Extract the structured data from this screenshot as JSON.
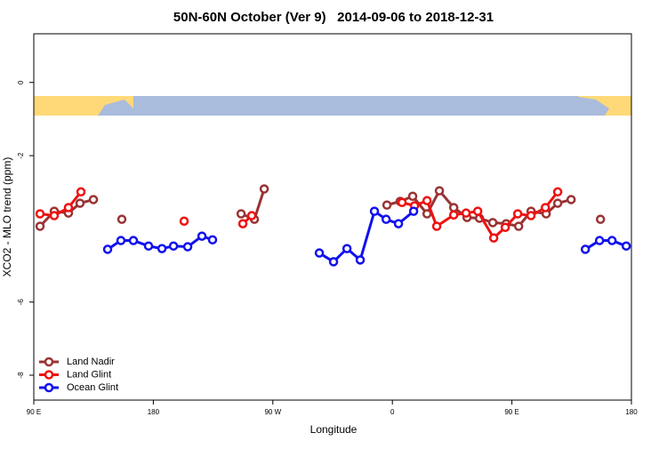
{
  "chart_data": {
    "type": "line",
    "title": "50N-60N October (Ver 9)   2014-09-06 to 2018-12-31",
    "x_label": "Longitude",
    "y_label": "XCO2 - MLO trend (ppm)",
    "xlim": [
      90,
      540
    ],
    "ylim": [
      -8.68,
      1.33
    ],
    "xticks": [
      {
        "value": 90,
        "label": "90 E"
      },
      {
        "value": 180,
        "label": "180"
      },
      {
        "value": 270,
        "label": "90 W"
      },
      {
        "value": 360,
        "label": "0"
      },
      {
        "value": 450,
        "label": "90 E"
      },
      {
        "value": 540,
        "label": "180"
      }
    ],
    "yticks": [
      0,
      -2,
      -6,
      -8
    ],
    "legend": "bottom-left",
    "series": [
      {
        "name": "Land Nadir",
        "color": "#993333",
        "x": [
          94.7,
          105.4,
          116.1,
          124.8,
          134.9,
          null,
          156.3,
          null,
          246.1,
          256.1,
          263.5,
          null,
          355.9,
          365.9,
          375.3,
          386.1,
          395.4,
          406.2,
          416.2,
          425.6,
          435.6,
          445.7,
          455.1,
          464.4,
          475.8,
          484.5,
          494.6,
          null,
          516.7
        ],
        "values": [
          -3.93,
          -3.52,
          -3.57,
          -3.3,
          -3.2,
          null,
          -3.74,
          null,
          -3.59,
          -3.74,
          -2.91,
          null,
          -3.35,
          -3.25,
          -3.11,
          -3.59,
          -2.96,
          -3.42,
          -3.69,
          -3.71,
          -3.83,
          -3.86,
          -3.93,
          -3.52,
          -3.59,
          -3.3,
          -3.2,
          null,
          -3.74
        ]
      },
      {
        "name": "Land Glint",
        "color": "#ee1111",
        "x": [
          94.7,
          105.4,
          116.1,
          125.5,
          null,
          203.2,
          null,
          247.4,
          254.1,
          null,
          367.3,
          376.7,
          386.1,
          393.4,
          406.2,
          415.5,
          424.3,
          436.3,
          445.0,
          454.4,
          464.4,
          475.2,
          484.5
        ],
        "values": [
          -3.59,
          -3.64,
          -3.42,
          -2.99,
          null,
          -3.79,
          null,
          -3.86,
          -3.64,
          null,
          -3.28,
          -3.37,
          -3.23,
          -3.93,
          -3.62,
          -3.57,
          -3.52,
          -4.25,
          -3.96,
          -3.59,
          -3.64,
          -3.42,
          -2.99
        ]
      },
      {
        "name": "Ocean Glint",
        "color": "#1111ee",
        "x": [
          145.6,
          155.6,
          165.0,
          176.4,
          186.5,
          195.2,
          205.9,
          216.6,
          224.6,
          null,
          305.0,
          315.7,
          325.8,
          335.8,
          346.5,
          355.3,
          364.6,
          376.0,
          null,
          505.3,
          516.0,
          525.4,
          536.1
        ],
        "values": [
          -4.56,
          -4.32,
          -4.32,
          -4.47,
          -4.54,
          -4.47,
          -4.49,
          -4.2,
          -4.3,
          null,
          -4.66,
          -4.9,
          -4.54,
          -4.85,
          -3.52,
          -3.74,
          -3.86,
          -3.52,
          null,
          -4.56,
          -4.32,
          -4.32,
          -4.47
        ]
      }
    ]
  }
}
